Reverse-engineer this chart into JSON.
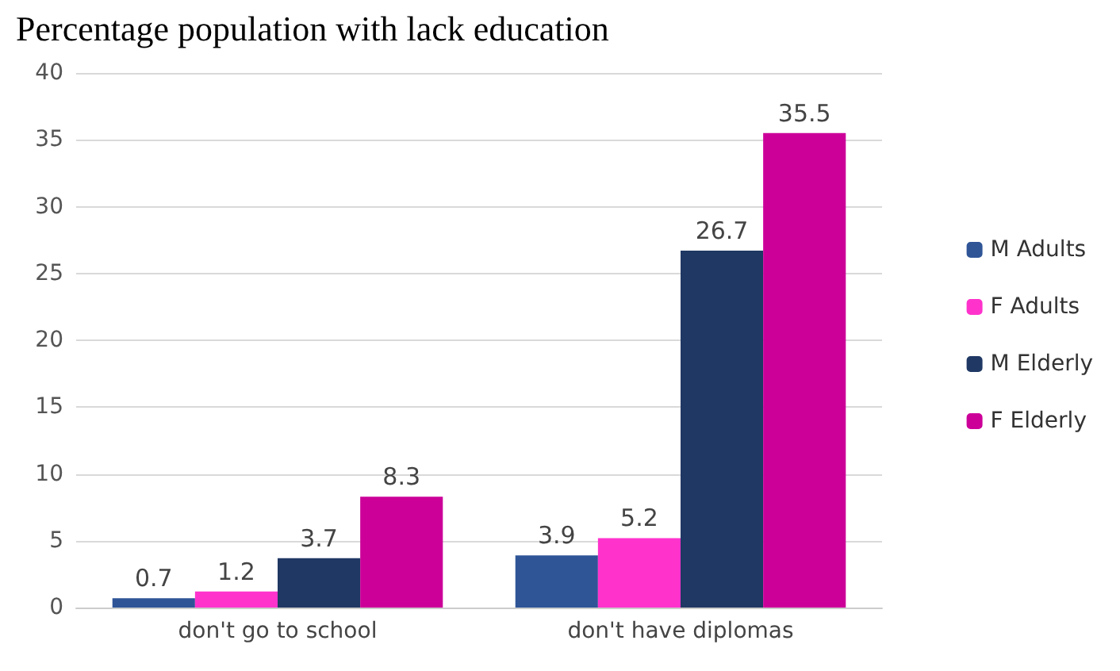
{
  "chart_data": {
    "type": "bar",
    "title": "Percentage population with lack education",
    "categories": [
      "don't go to school",
      "don't have diplomas"
    ],
    "series": [
      {
        "name": "M Adults",
        "color": "#2f5597",
        "values": [
          0.7,
          3.9
        ]
      },
      {
        "name": "F Adults",
        "color": "#ff33cc",
        "values": [
          1.2,
          5.2
        ]
      },
      {
        "name": "M Elderly",
        "color": "#203864",
        "values": [
          3.7,
          26.7
        ]
      },
      {
        "name": "F Elderly",
        "color": "#cc0099",
        "values": [
          8.3,
          35.5
        ]
      }
    ],
    "ylim": [
      0,
      40
    ],
    "yticks": [
      0,
      5,
      10,
      15,
      20,
      25,
      30,
      35,
      40
    ],
    "grid": "y",
    "legend": "right",
    "data_labels": true
  }
}
